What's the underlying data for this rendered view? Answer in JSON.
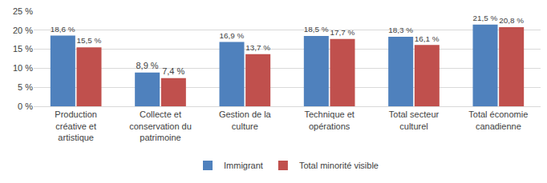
{
  "chart_data": {
    "type": "bar",
    "categories": [
      "Production créative et artistique",
      "Collecte et conservation du patrimoine",
      "Gestion de la culture",
      "Technique et opérations",
      "Total secteur culturel",
      "Total économie canadienne"
    ],
    "series": [
      {
        "name": "Immigrant",
        "color": "#4f81bd",
        "values": [
          18.6,
          8.9,
          16.9,
          18.5,
          18.3,
          21.5
        ],
        "value_labels": [
          "18,6 %",
          "8,9 %",
          "16,9 %",
          "18,5 %",
          "18,3 %",
          "21,5 %"
        ]
      },
      {
        "name": "Total minorité visible",
        "color": "#c0504d",
        "values": [
          15.5,
          7.4,
          13.7,
          17.7,
          16.1,
          20.8
        ],
        "value_labels": [
          "15,5 %",
          "7,4 %",
          "13,7 %",
          "17,7 %",
          "16,1 %",
          "20,8 %"
        ]
      }
    ],
    "ylim": [
      0,
      25
    ],
    "yticks": [
      {
        "value": 0,
        "label": "0 %"
      },
      {
        "value": 5,
        "label": "5 %"
      },
      {
        "value": 10,
        "label": "10 %"
      },
      {
        "value": 15,
        "label": "15 %"
      },
      {
        "value": 20,
        "label": "20 %"
      },
      {
        "value": 25,
        "label": "25 %"
      }
    ],
    "grid": true,
    "legend": "bottom",
    "data_labels": true
  }
}
